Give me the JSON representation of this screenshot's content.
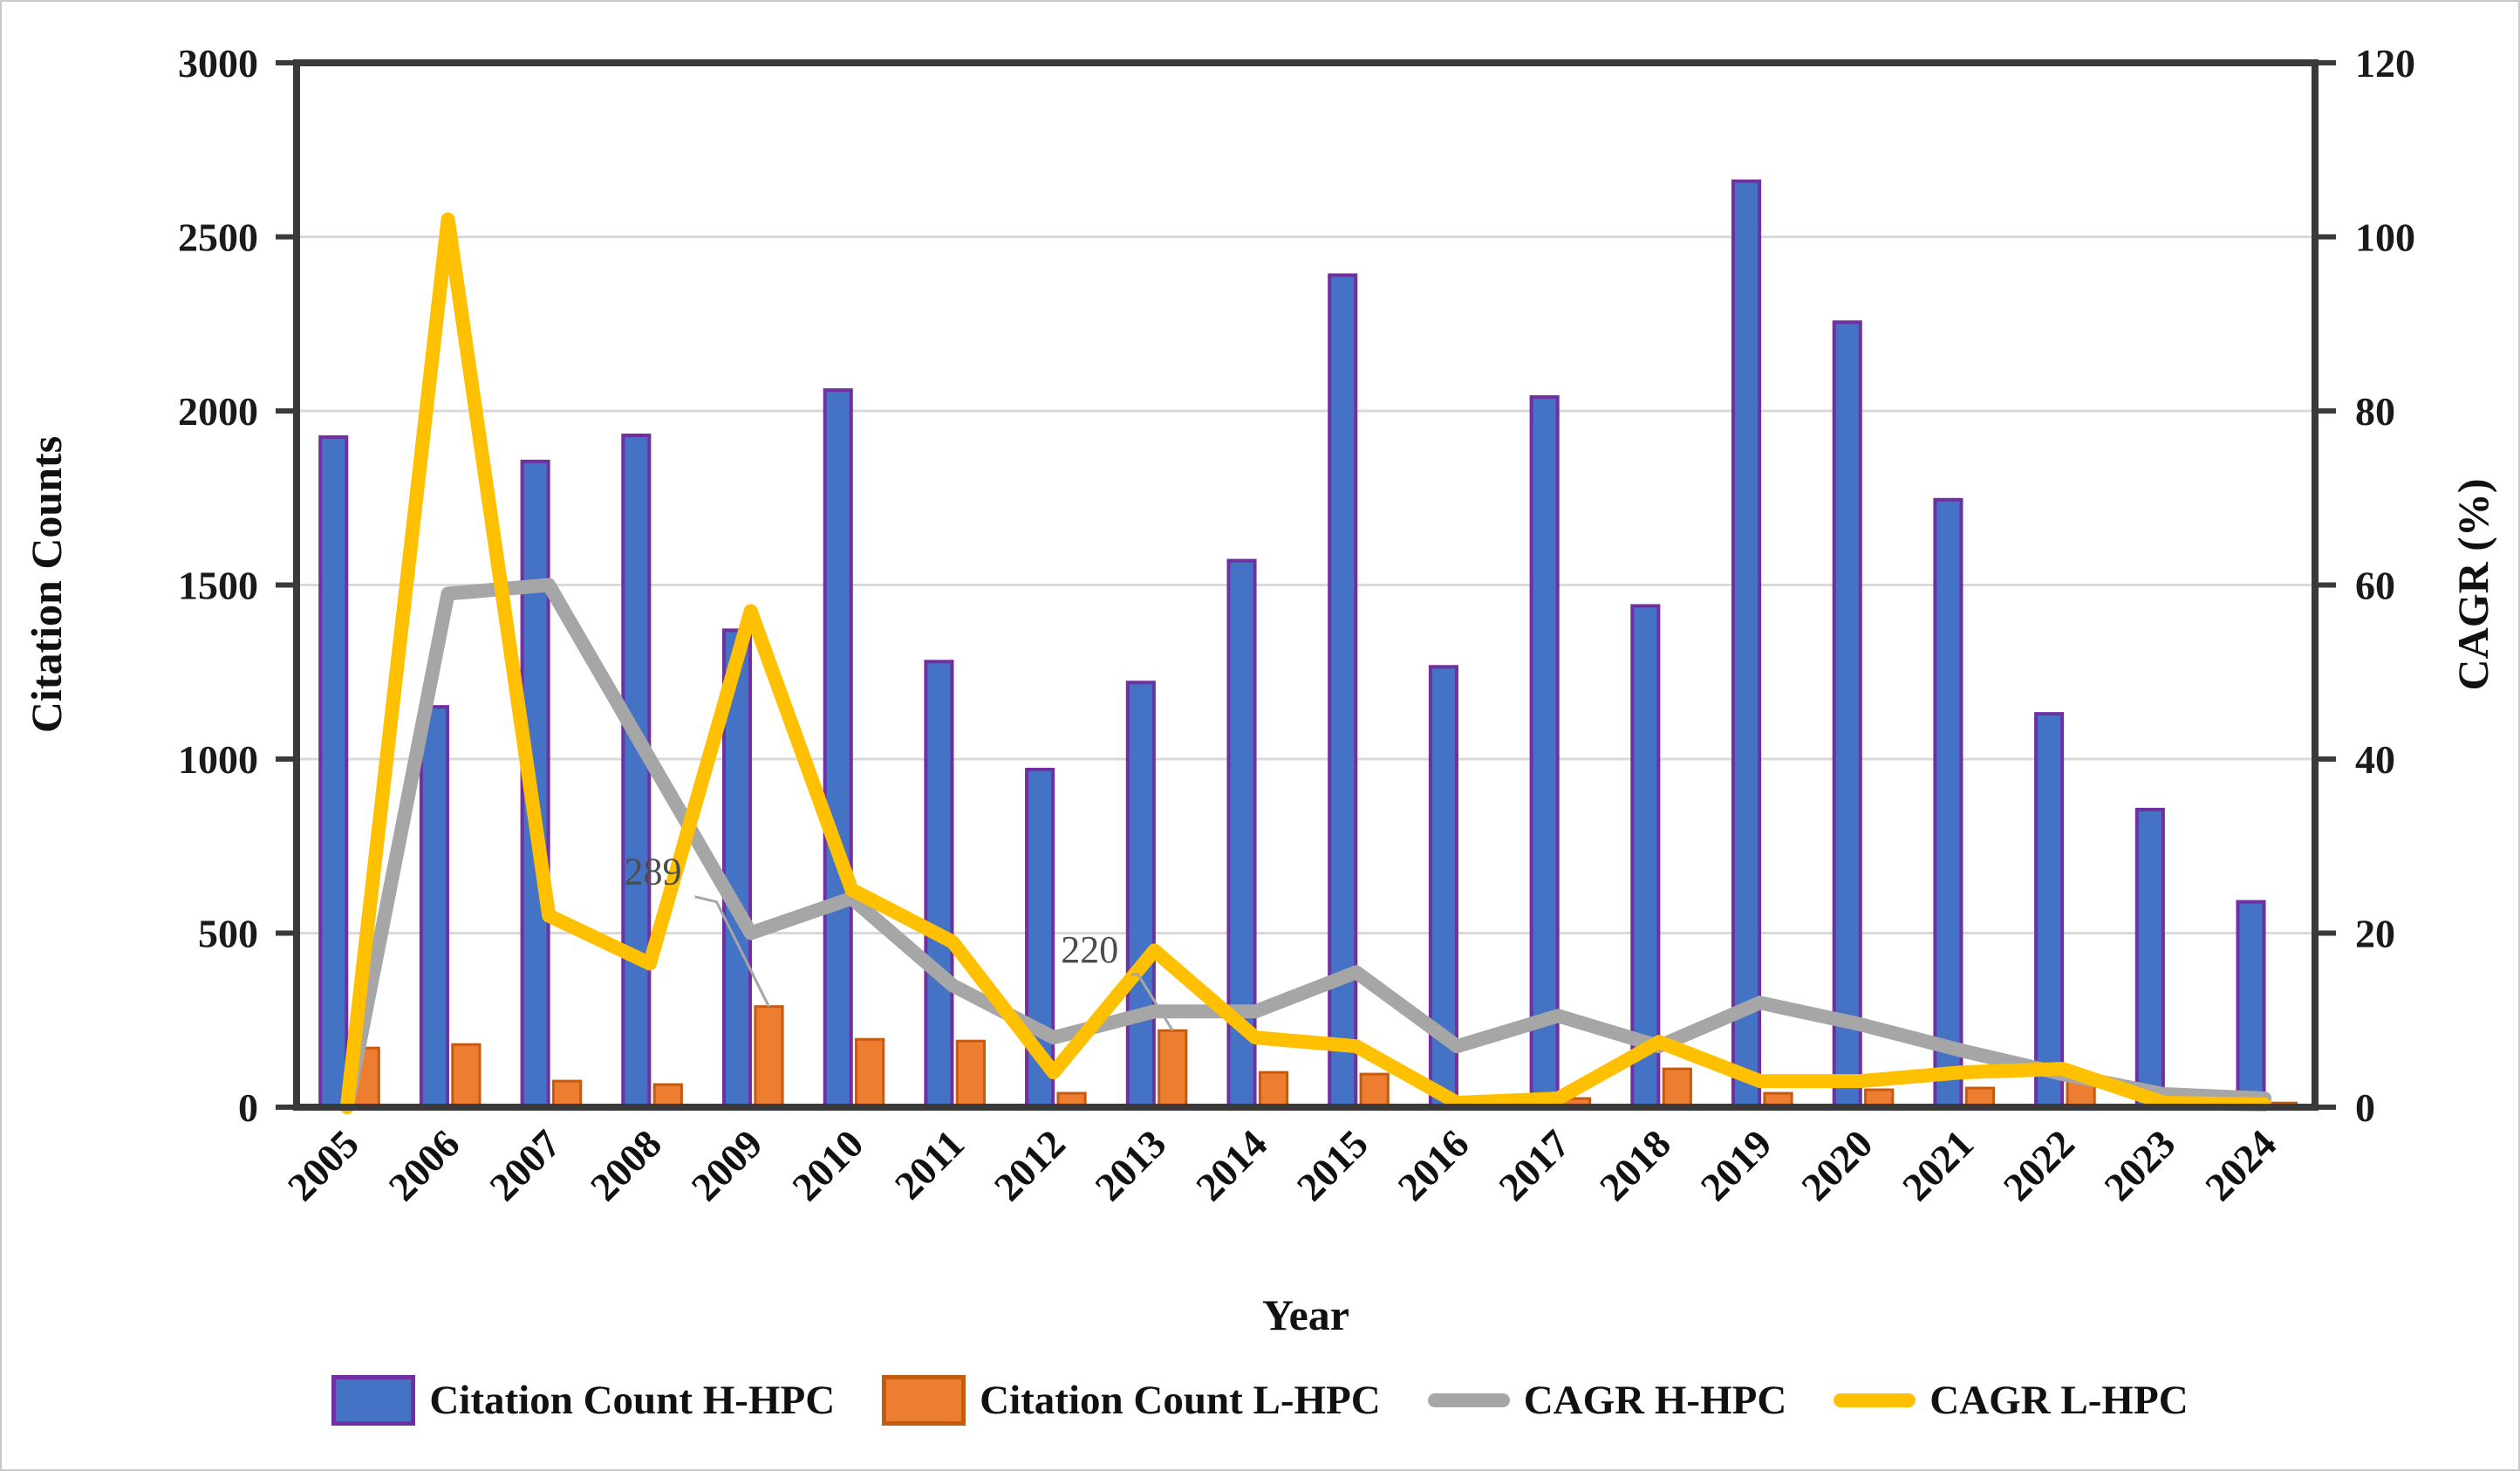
{
  "figure": {
    "background": "#FFFFFF",
    "border_color": "#C9C9C9",
    "frame_color": "#3A3A3A",
    "gridline_color": "#D9D9D9"
  },
  "chart_data": {
    "type": "combo-bar-line",
    "title": "",
    "grid": true,
    "legend_position": "bottom",
    "x": {
      "label": "Year",
      "categories": [
        "2005",
        "2006",
        "2007",
        "2008",
        "2009",
        "2010",
        "2011",
        "2012",
        "2013",
        "2014",
        "2015",
        "2016",
        "2017",
        "2018",
        "2019",
        "2020",
        "2021",
        "2022",
        "2023",
        "2024"
      ]
    },
    "left_axis": {
      "label": "Citation Counts",
      "min": 0,
      "max": 3000,
      "step": 500,
      "tick_labels": [
        "0",
        "500",
        "1000",
        "1500",
        "2000",
        "2500",
        "3000"
      ]
    },
    "right_axis": {
      "label": "CAGR (%)",
      "min": 0,
      "max": 120,
      "step": 20,
      "tick_labels": [
        "0",
        "20",
        "40",
        "60",
        "80",
        "100",
        "120"
      ]
    },
    "series": [
      {
        "name": "Citation Count H-HPC",
        "type": "bar",
        "axis": "left",
        "color": "#4472C4",
        "border_color": "#7030A0",
        "values": [
          1925,
          1150,
          1855,
          1930,
          1370,
          2060,
          1280,
          970,
          1220,
          1570,
          2390,
          1265,
          2040,
          1440,
          2660,
          2255,
          1745,
          1130,
          855,
          590
        ]
      },
      {
        "name": "Citation Count L-HPC",
        "type": "bar",
        "axis": "left",
        "color": "#ED7D31",
        "border_color": "#C55A11",
        "values": [
          170,
          180,
          75,
          65,
          289,
          195,
          190,
          40,
          220,
          100,
          95,
          8,
          25,
          110,
          40,
          50,
          55,
          75,
          15,
          12
        ]
      },
      {
        "name": "CAGR H-HPC",
        "type": "line",
        "axis": "right",
        "color": "#A6A6A6",
        "values": [
          0,
          59,
          60,
          40,
          20,
          24,
          14,
          8,
          11,
          11,
          15.5,
          7,
          10.5,
          7,
          12,
          9.5,
          6.5,
          3.8,
          1.5,
          1
        ]
      },
      {
        "name": "CAGR L-HPC",
        "type": "line",
        "axis": "right",
        "color": "#FFC000",
        "values": [
          0,
          102,
          22,
          16.5,
          57,
          25,
          19,
          4,
          18,
          8,
          7,
          0.5,
          1,
          7.5,
          3,
          3,
          4,
          4.4,
          0.5,
          0.3
        ]
      }
    ],
    "annotations": [
      {
        "text": "289",
        "year": "2009",
        "points_to_series": "Citation Count L-HPC",
        "value": 289
      },
      {
        "text": "220",
        "year": "2013",
        "points_to_series": "Citation Count L-HPC",
        "value": 220
      }
    ]
  }
}
